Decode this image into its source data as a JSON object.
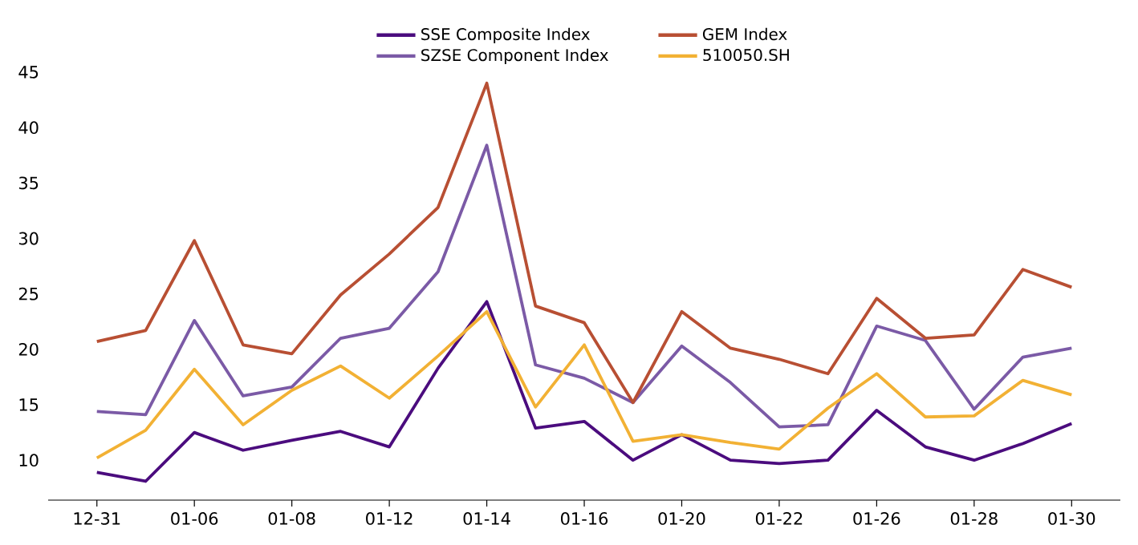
{
  "chart_data": {
    "type": "line",
    "categories": [
      "12-31",
      null,
      "01-06",
      null,
      "01-08",
      null,
      "01-12",
      null,
      "01-14",
      null,
      "01-16",
      null,
      "01-20",
      null,
      "01-22",
      null,
      "01-26",
      null,
      "01-28",
      null,
      "01-30"
    ],
    "series": [
      {
        "name": "SSE Composite Index",
        "color": "#4b0c7e",
        "values": [
          8.9,
          8.1,
          12.5,
          10.9,
          11.8,
          12.6,
          11.2,
          18.3,
          24.3,
          12.9,
          13.5,
          10.0,
          12.3,
          10.0,
          9.7,
          10.0,
          14.5,
          11.2,
          10.0,
          11.5,
          13.3
        ]
      },
      {
        "name": "SZSE Component Index",
        "color": "#7b5aa6",
        "values": [
          14.4,
          14.1,
          22.6,
          15.8,
          16.6,
          21.0,
          21.9,
          27.0,
          38.4,
          18.6,
          17.4,
          15.2,
          20.3,
          17.0,
          13.0,
          13.2,
          22.1,
          20.8,
          14.6,
          19.3,
          20.1
        ]
      },
      {
        "name": "GEM Index",
        "color": "#b84f33",
        "values": [
          20.7,
          21.7,
          29.8,
          20.4,
          19.6,
          24.9,
          28.6,
          32.8,
          44.0,
          23.9,
          22.4,
          15.2,
          23.4,
          20.1,
          19.1,
          17.8,
          24.6,
          21.0,
          21.3,
          27.2,
          25.6
        ]
      },
      {
        "name": "510050.SH",
        "color": "#f2b134",
        "values": [
          10.2,
          12.7,
          18.2,
          13.2,
          16.3,
          18.5,
          15.6,
          19.4,
          23.4,
          14.8,
          20.4,
          11.7,
          12.3,
          11.6,
          11.0,
          14.7,
          17.8,
          13.9,
          14.0,
          17.2,
          15.9
        ]
      }
    ],
    "ylim": [
      6.4,
      45
    ],
    "yticks": [
      10,
      15,
      20,
      25,
      30,
      35,
      40,
      45
    ],
    "grid": false,
    "legend": "top",
    "marker": "none",
    "line_style": "solid"
  }
}
